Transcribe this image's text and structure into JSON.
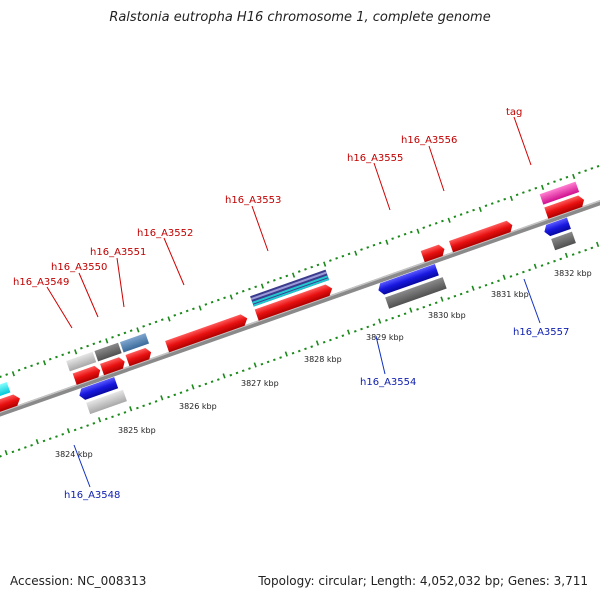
{
  "title": "Ralstonia eutropha H16 chromosome 1, complete genome",
  "footer": {
    "accession": "Accession: NC_008313",
    "topology": "Topology: circular; Length: 4,052,032 bp; Genes: 3,711"
  },
  "colors": {
    "forward_gene": "#e81010",
    "reverse_gene": "#1818e0",
    "forward_label": "#c00000",
    "reverse_label": "#1020b0",
    "backbone": "#808080",
    "ruler_ticks": "#1a8a1a"
  },
  "ticks": [
    "3824 kbp",
    "3825 kbp",
    "3826 kbp",
    "3827 kbp",
    "3828 kbp",
    "3829 kbp",
    "3830 kbp",
    "3831 kbp",
    "3832 kbp"
  ],
  "labels": {
    "forward": [
      "h16_A3549",
      "h16_A3550",
      "h16_A3551",
      "h16_A3552",
      "h16_A3553",
      "h16_A3555",
      "h16_A3556",
      "tag"
    ],
    "reverse": [
      "h16_A3548",
      "h16_A3554",
      "h16_A3557"
    ]
  }
}
